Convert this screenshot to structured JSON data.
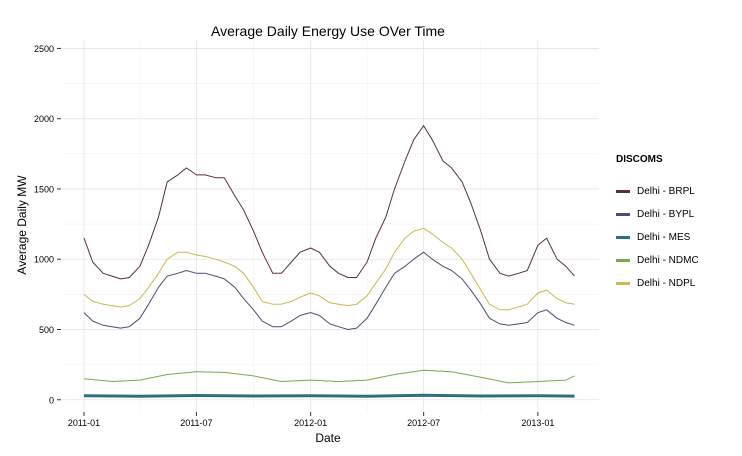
{
  "chart_data": {
    "type": "line",
    "title": "Average Daily Energy Use OVer Time",
    "xlabel": "Date",
    "ylabel": "Average Daily MW",
    "x_range": [
      "2011-01-01",
      "2013-03-05"
    ],
    "ylim": [
      -80,
      2560
    ],
    "y_ticks": [
      0,
      500,
      1000,
      1500,
      2000,
      2500
    ],
    "x_ticks": [
      "2011-01",
      "2011-07",
      "2012-01",
      "2012-07",
      "2013-01"
    ],
    "grid": true,
    "legend": {
      "title": "DISCOMS",
      "position": "right",
      "entries": [
        "Delhi - BRPL",
        "Delhi - BYPL",
        "Delhi - MES",
        "Delhi - NDMC",
        "Delhi - NDPL"
      ]
    },
    "series": [
      {
        "name": "Delhi - BRPL",
        "color": "#5a2e47",
        "x": [
          "2011-01-01",
          "2011-01-15",
          "2011-02-01",
          "2011-02-15",
          "2011-03-01",
          "2011-03-15",
          "2011-04-01",
          "2011-04-15",
          "2011-05-01",
          "2011-05-15",
          "2011-06-01",
          "2011-06-15",
          "2011-07-01",
          "2011-07-15",
          "2011-08-01",
          "2011-08-15",
          "2011-09-01",
          "2011-09-15",
          "2011-10-01",
          "2011-10-15",
          "2011-11-01",
          "2011-11-15",
          "2011-12-01",
          "2011-12-15",
          "2012-01-01",
          "2012-01-15",
          "2012-02-01",
          "2012-02-15",
          "2012-03-01",
          "2012-03-15",
          "2012-04-01",
          "2012-04-15",
          "2012-05-01",
          "2012-05-15",
          "2012-06-01",
          "2012-06-15",
          "2012-07-01",
          "2012-07-15",
          "2012-08-01",
          "2012-08-15",
          "2012-09-01",
          "2012-09-15",
          "2012-10-01",
          "2012-10-15",
          "2012-11-01",
          "2012-11-15",
          "2012-12-01",
          "2012-12-15",
          "2013-01-01",
          "2013-01-15",
          "2013-02-01",
          "2013-02-15",
          "2013-03-01"
        ],
        "values": [
          1150,
          980,
          900,
          880,
          860,
          870,
          950,
          1100,
          1300,
          1550,
          1600,
          1650,
          1600,
          1600,
          1580,
          1580,
          1450,
          1350,
          1200,
          1050,
          900,
          900,
          980,
          1050,
          1080,
          1050,
          950,
          900,
          870,
          870,
          980,
          1150,
          1300,
          1500,
          1700,
          1850,
          1950,
          1850,
          1700,
          1650,
          1550,
          1400,
          1200,
          1000,
          900,
          880,
          900,
          920,
          1100,
          1150,
          1000,
          950,
          880
        ]
      },
      {
        "name": "Delhi - BYPL",
        "color": "#4b5073",
        "x": [
          "2011-01-01",
          "2011-01-15",
          "2011-02-01",
          "2011-02-15",
          "2011-03-01",
          "2011-03-15",
          "2011-04-01",
          "2011-04-15",
          "2011-05-01",
          "2011-05-15",
          "2011-06-01",
          "2011-06-15",
          "2011-07-01",
          "2011-07-15",
          "2011-08-01",
          "2011-08-15",
          "2011-09-01",
          "2011-09-15",
          "2011-10-01",
          "2011-10-15",
          "2011-11-01",
          "2011-11-15",
          "2011-12-01",
          "2011-12-15",
          "2012-01-01",
          "2012-01-15",
          "2012-02-01",
          "2012-02-15",
          "2012-03-01",
          "2012-03-15",
          "2012-04-01",
          "2012-04-15",
          "2012-05-01",
          "2012-05-15",
          "2012-06-01",
          "2012-06-15",
          "2012-07-01",
          "2012-07-15",
          "2012-08-01",
          "2012-08-15",
          "2012-09-01",
          "2012-09-15",
          "2012-10-01",
          "2012-10-15",
          "2012-11-01",
          "2012-11-15",
          "2012-12-01",
          "2012-12-15",
          "2013-01-01",
          "2013-01-15",
          "2013-02-01",
          "2013-02-15",
          "2013-03-01"
        ],
        "values": [
          620,
          560,
          530,
          520,
          510,
          520,
          580,
          680,
          800,
          880,
          900,
          920,
          900,
          900,
          880,
          860,
          800,
          720,
          640,
          560,
          520,
          520,
          560,
          600,
          620,
          600,
          540,
          520,
          500,
          510,
          580,
          680,
          800,
          900,
          950,
          1000,
          1050,
          1000,
          950,
          920,
          860,
          780,
          680,
          580,
          540,
          530,
          540,
          550,
          620,
          640,
          580,
          550,
          530
        ]
      },
      {
        "name": "Delhi - MES",
        "color": "#2f6f7e",
        "x": [
          "2011-01-01",
          "2011-04-01",
          "2011-07-01",
          "2011-10-01",
          "2012-01-01",
          "2012-04-01",
          "2012-07-01",
          "2012-10-01",
          "2013-01-01",
          "2013-03-01"
        ],
        "values": [
          28,
          25,
          30,
          27,
          28,
          25,
          32,
          27,
          28,
          26
        ]
      },
      {
        "name": "Delhi - NDMC",
        "color": "#78a84f",
        "x": [
          "2011-01-01",
          "2011-02-15",
          "2011-04-01",
          "2011-05-15",
          "2011-07-01",
          "2011-08-15",
          "2011-10-01",
          "2011-11-15",
          "2012-01-01",
          "2012-02-15",
          "2012-04-01",
          "2012-05-15",
          "2012-07-01",
          "2012-08-15",
          "2012-10-01",
          "2012-11-15",
          "2013-01-01",
          "2013-02-15",
          "2013-03-01"
        ],
        "values": [
          150,
          130,
          140,
          180,
          200,
          195,
          170,
          130,
          140,
          130,
          140,
          180,
          210,
          200,
          160,
          120,
          130,
          140,
          170
        ]
      },
      {
        "name": "Delhi - NDPL",
        "color": "#c9b853",
        "x": [
          "2011-01-01",
          "2011-01-15",
          "2011-02-01",
          "2011-02-15",
          "2011-03-01",
          "2011-03-15",
          "2011-04-01",
          "2011-04-15",
          "2011-05-01",
          "2011-05-15",
          "2011-06-01",
          "2011-06-15",
          "2011-07-01",
          "2011-07-15",
          "2011-08-01",
          "2011-08-15",
          "2011-09-01",
          "2011-09-15",
          "2011-10-01",
          "2011-10-15",
          "2011-11-01",
          "2011-11-15",
          "2011-12-01",
          "2011-12-15",
          "2012-01-01",
          "2012-01-15",
          "2012-02-01",
          "2012-02-15",
          "2012-03-01",
          "2012-03-15",
          "2012-04-01",
          "2012-04-15",
          "2012-05-01",
          "2012-05-15",
          "2012-06-01",
          "2012-06-15",
          "2012-07-01",
          "2012-07-15",
          "2012-08-01",
          "2012-08-15",
          "2012-09-01",
          "2012-09-15",
          "2012-10-01",
          "2012-10-15",
          "2012-11-01",
          "2012-11-15",
          "2012-12-01",
          "2012-12-15",
          "2013-01-01",
          "2013-01-15",
          "2013-02-01",
          "2013-02-15",
          "2013-03-01"
        ],
        "values": [
          750,
          700,
          680,
          670,
          660,
          670,
          720,
          800,
          900,
          1000,
          1050,
          1050,
          1030,
          1020,
          1000,
          980,
          950,
          900,
          800,
          700,
          680,
          680,
          700,
          730,
          760,
          740,
          690,
          680,
          670,
          680,
          740,
          830,
          930,
          1050,
          1150,
          1200,
          1220,
          1180,
          1120,
          1080,
          1000,
          900,
          780,
          680,
          640,
          640,
          660,
          680,
          760,
          780,
          720,
          690,
          680
        ]
      }
    ]
  }
}
